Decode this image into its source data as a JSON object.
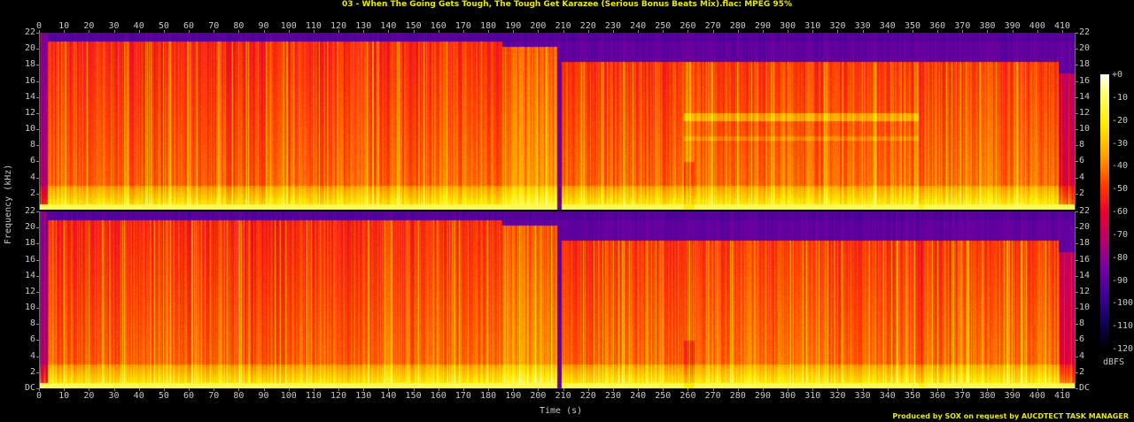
{
  "header": {
    "title": "03 - When The Going Gets Tough, The Tough Get Karazee (Serious Bonus Beats Mix).flac: MPEG 95%"
  },
  "axes": {
    "xlabel": "Time (s)",
    "ylabel": "Frequency (kHz)",
    "colorbar_label": "dBFS"
  },
  "footer": {
    "credit": "Produced by SOX on request by AUCDTECT TASK MANAGER"
  },
  "colors": {
    "title": "#e8e800",
    "background": "#000000",
    "axis_text": "#c8c8c8"
  },
  "chart_data": {
    "type": "heatmap",
    "title": "03 - When The Going Gets Tough, The Tough Get Karazee (Serious Bonus Beats Mix).flac: MPEG 95%",
    "xlabel": "Time (s)",
    "ylabel": "Frequency (kHz)",
    "colorbar_label": "dBFS",
    "x_ticks": [
      0,
      10,
      20,
      30,
      40,
      50,
      60,
      70,
      80,
      90,
      100,
      110,
      120,
      130,
      140,
      150,
      160,
      170,
      180,
      190,
      200,
      210,
      220,
      230,
      240,
      250,
      260,
      270,
      280,
      290,
      300,
      310,
      320,
      330,
      340,
      350,
      360,
      370,
      380,
      390,
      400,
      410
    ],
    "xlim": [
      0,
      415
    ],
    "y_ticks_top": [
      "22",
      "20",
      "18",
      "16",
      "14",
      "12",
      "10",
      "8",
      "6",
      "4",
      "2"
    ],
    "y_ticks_bottom": [
      "22",
      "20",
      "18",
      "16",
      "14",
      "12",
      "10",
      "8",
      "6",
      "4",
      "2",
      "DC"
    ],
    "ylim": [
      0,
      22
    ],
    "colorbar_ticks": [
      "+0",
      "-10",
      "-20",
      "-30",
      "-40",
      "-50",
      "-60",
      "-70",
      "-80",
      "-90",
      "-100",
      "-110",
      "-120"
    ],
    "colorbar_range": [
      -120,
      0
    ],
    "channels": 2,
    "segments": [
      {
        "start": 0,
        "end": 3,
        "cutoff_khz": 22,
        "level": "quiet intro"
      },
      {
        "start": 3,
        "end": 115,
        "cutoff_khz": 21,
        "level": "dense red with upper purple above 20kHz"
      },
      {
        "start": 115,
        "end": 185,
        "cutoff_khz": 21,
        "level": "red, stronger low band"
      },
      {
        "start": 185,
        "end": 207,
        "cutoff_khz": 20.5,
        "level": "bright orange block up to ~20kHz"
      },
      {
        "start": 207,
        "end": 209,
        "cutoff_khz": 0,
        "level": "gap"
      },
      {
        "start": 209,
        "end": 258,
        "cutoff_khz": 18.5,
        "level": "cutoff at ~18.5kHz (MPEG lowpass)"
      },
      {
        "start": 258,
        "end": 352,
        "cutoff_khz": 18.5,
        "level": "tonal band near 12kHz and 9kHz in ch1"
      },
      {
        "start": 352,
        "end": 408,
        "cutoff_khz": 18.5,
        "level": "red/orange"
      },
      {
        "start": 408,
        "end": 415,
        "cutoff_khz": 17,
        "level": "fade out"
      }
    ]
  }
}
